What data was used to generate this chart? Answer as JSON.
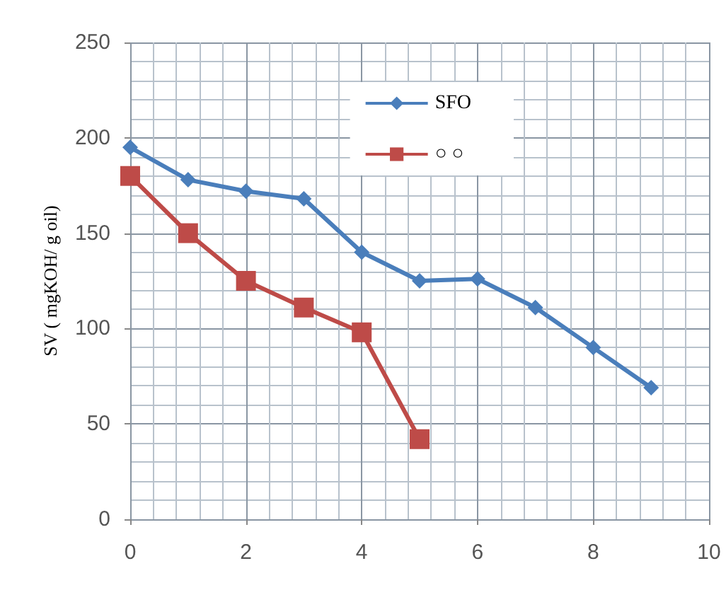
{
  "chart_data": {
    "type": "line",
    "ylabel": "SV ( mgKOH/ g oil)",
    "x": [
      0,
      1,
      2,
      3,
      4,
      5,
      6,
      7,
      8,
      9
    ],
    "series": [
      {
        "name": "SFO",
        "color": "#4a7ebb",
        "values": [
          195,
          178,
          172,
          168,
          140,
          125,
          126,
          111,
          90,
          69
        ],
        "marker": "diamond"
      },
      {
        "name": "○ ○",
        "color": "#be4b48",
        "x": [
          0,
          1,
          2,
          3,
          4,
          5
        ],
        "values": [
          180,
          150,
          125,
          111,
          98,
          42
        ],
        "marker": "square"
      }
    ],
    "xlim": [
      0,
      10
    ],
    "xticks": [
      0,
      2,
      4,
      6,
      8,
      10
    ],
    "ylim": [
      0,
      250
    ],
    "yticks": [
      0,
      50,
      100,
      150,
      200,
      250
    ],
    "grid": true,
    "legend": "top right"
  }
}
